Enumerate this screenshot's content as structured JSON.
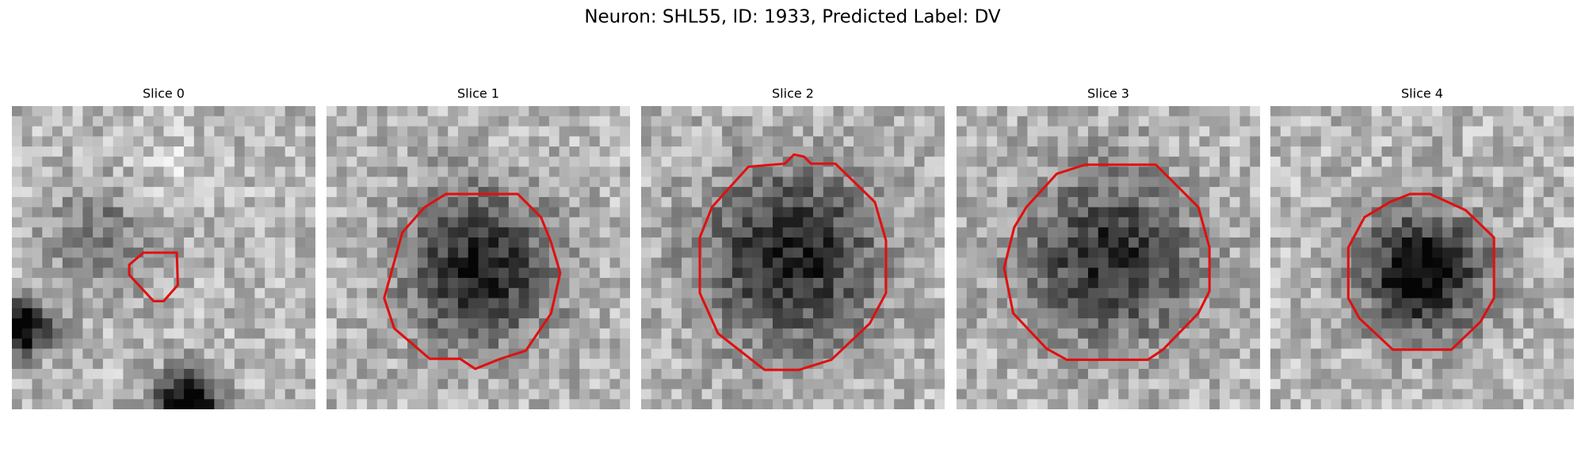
{
  "title": "Neuron: SHL55, ID: 1933, Predicted Label: DV",
  "panels": [
    {
      "title": "Slice 0"
    },
    {
      "title": "Slice 1"
    },
    {
      "title": "Slice 2"
    },
    {
      "title": "Slice 3"
    },
    {
      "title": "Slice 4"
    }
  ]
}
